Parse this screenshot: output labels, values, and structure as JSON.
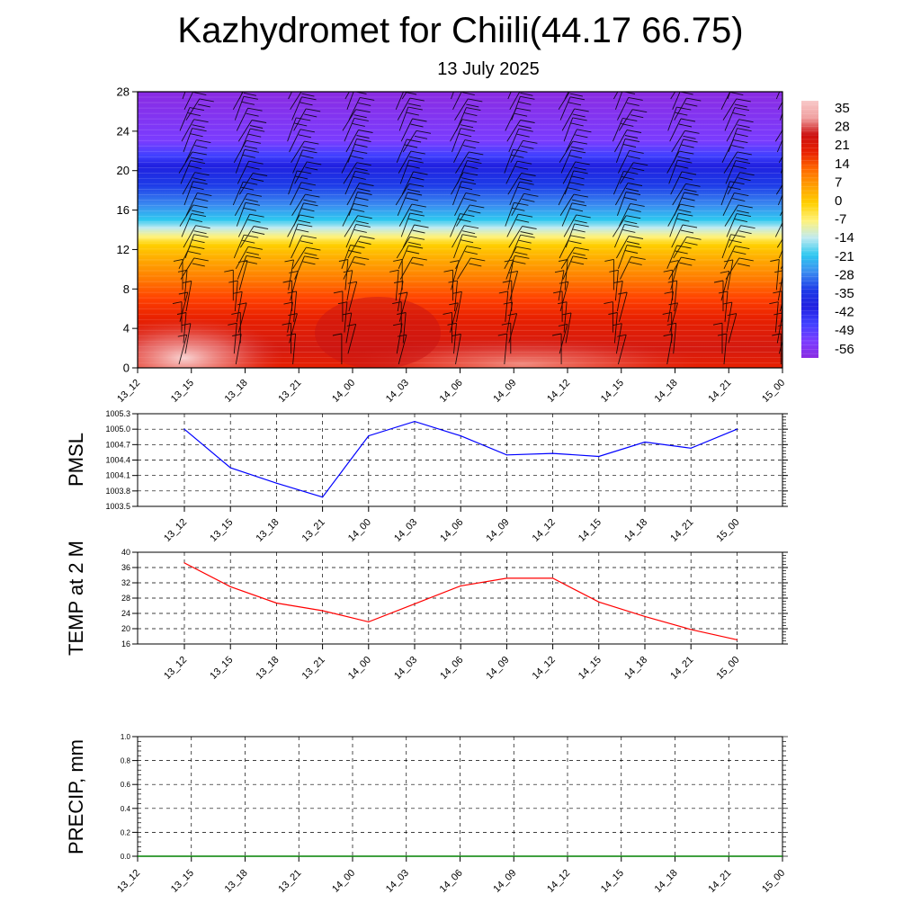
{
  "title": "Kazhydromet for Chiili(44.17 66.75)",
  "subtitle": "13 July 2025",
  "time_labels": [
    "13_12",
    "13_15",
    "13_18",
    "13_21",
    "14_00",
    "14_03",
    "14_06",
    "14_09",
    "14_12",
    "14_15",
    "14_18",
    "14_21",
    "15_00"
  ],
  "chart_data": [
    {
      "type": "heatmap",
      "title": "",
      "xlabel": "",
      "ylabel": "",
      "y_ticks": [
        0,
        4,
        8,
        12,
        16,
        20,
        24,
        28
      ],
      "ylim": [
        0,
        28
      ],
      "colorbar_labels": [
        "35",
        "28",
        "21",
        "14",
        "7",
        "0",
        "-7",
        "-14",
        "-21",
        "-28",
        "-35",
        "-42",
        "-49",
        "-56"
      ],
      "colorbar_range": [
        -63,
        42
      ],
      "overlay": "wind-barbs",
      "colors": {
        "-63": "#8a2be2",
        "-56": "#7a3cff",
        "-49": "#4040ff",
        "-42": "#2020e0",
        "-35": "#1e3ce8",
        "-28": "#3a8cf0",
        "-21": "#2ec8f0",
        "-14": "#bfeaf0",
        "-7": "#fff27a",
        "0": "#ffd000",
        "7": "#ffa000",
        "14": "#ff6a00",
        "21": "#e82000",
        "28": "#cc1010",
        "35": "#f0a0a0",
        "42": "#f8c8c8"
      }
    },
    {
      "type": "line",
      "ylabel": "PMSL",
      "y_ticks": [
        "1003.5",
        "1003.8",
        "1004.1",
        "1004.4",
        "1004.7",
        "1005.0",
        "1005.3"
      ],
      "ylim": [
        1003.5,
        1005.3
      ],
      "categories": [
        "13_12",
        "13_15",
        "13_18",
        "13_21",
        "14_00",
        "14_03",
        "14_06",
        "14_09",
        "14_12",
        "14_15",
        "14_18",
        "14_21",
        "15_00"
      ],
      "values": [
        1005.0,
        1004.25,
        1003.95,
        1003.68,
        1004.87,
        1005.15,
        1004.87,
        1004.5,
        1004.53,
        1004.47,
        1004.75,
        1004.63,
        1005.0
      ],
      "color": "#0000ff"
    },
    {
      "type": "line",
      "ylabel": "TEMP at 2 M",
      "y_ticks": [
        "16",
        "20",
        "24",
        "28",
        "32",
        "36",
        "40"
      ],
      "ylim": [
        16,
        40
      ],
      "categories": [
        "13_12",
        "13_15",
        "13_18",
        "13_21",
        "14_00",
        "14_03",
        "14_06",
        "14_09",
        "14_12",
        "14_15",
        "14_18",
        "14_21",
        "15_00"
      ],
      "values": [
        37.2,
        31.0,
        26.7,
        24.7,
        21.8,
        26.5,
        31.2,
        33.2,
        33.2,
        27.0,
        23.2,
        19.8,
        17.1
      ],
      "color": "#ff0000"
    },
    {
      "type": "bar",
      "ylabel": "PRECIP, mm",
      "y_ticks": [
        "0.0",
        "0.2",
        "0.4",
        "0.6",
        "0.8",
        "1.0"
      ],
      "ylim": [
        0,
        1.0
      ],
      "categories": [
        "13_12",
        "13_15",
        "13_18",
        "13_21",
        "14_00",
        "14_03",
        "14_06",
        "14_09",
        "14_12",
        "14_15",
        "14_18",
        "14_21",
        "15_00"
      ],
      "values": [
        0,
        0,
        0,
        0,
        0,
        0,
        0,
        0,
        0,
        0,
        0,
        0,
        0
      ],
      "color": "#008000"
    }
  ]
}
